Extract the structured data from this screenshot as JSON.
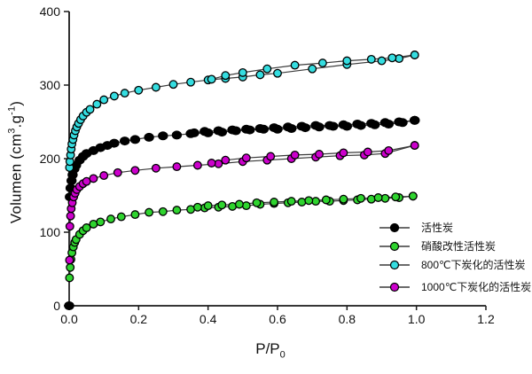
{
  "chart_data": {
    "type": "line",
    "subtype": "adsorption-desorption-isotherm-scatter",
    "title": "",
    "xlabel": {
      "base": "P/P",
      "sub": "0"
    },
    "ylabel": {
      "pre": "Volumen (cm",
      "sup1": "3",
      "mid": ".g",
      "sup2": "-1",
      "post": ")"
    },
    "xlim": [
      0,
      1.2
    ],
    "ylim": [
      0,
      400
    ],
    "x_ticks": [
      0.0,
      0.2,
      0.4,
      0.6,
      0.8,
      1.0,
      1.2
    ],
    "x_tick_labels": [
      "0.0",
      "0.2",
      "0.4",
      "0.6",
      "0.8",
      "1.0",
      "1.2"
    ],
    "y_ticks": [
      0,
      100,
      200,
      300,
      400
    ],
    "y_tick_labels": [
      "0",
      "100",
      "200",
      "300",
      "400"
    ],
    "grid": "off",
    "legend_position": "right-center",
    "line_color": "#3a3a3a",
    "series": [
      {
        "name": "活性炭",
        "color": "#000000",
        "adsorption": [
          [
            0,
            0
          ],
          [
            0.002,
            148
          ],
          [
            0.004,
            160
          ],
          [
            0.007,
            170
          ],
          [
            0.01,
            178
          ],
          [
            0.015,
            186
          ],
          [
            0.02,
            191
          ],
          [
            0.03,
            198
          ],
          [
            0.04,
            203
          ],
          [
            0.05,
            207
          ],
          [
            0.07,
            211
          ],
          [
            0.09,
            215
          ],
          [
            0.11,
            218
          ],
          [
            0.13,
            221
          ],
          [
            0.16,
            224
          ],
          [
            0.19,
            226
          ],
          [
            0.23,
            229
          ],
          [
            0.27,
            231
          ],
          [
            0.31,
            232
          ],
          [
            0.35,
            234
          ],
          [
            0.4,
            235
          ],
          [
            0.44,
            236
          ],
          [
            0.48,
            238
          ],
          [
            0.52,
            239
          ],
          [
            0.56,
            240
          ],
          [
            0.6,
            240
          ],
          [
            0.64,
            241
          ],
          [
            0.68,
            242
          ],
          [
            0.72,
            243
          ],
          [
            0.76,
            244
          ],
          [
            0.8,
            244
          ],
          [
            0.84,
            245
          ],
          [
            0.88,
            246
          ],
          [
            0.92,
            247
          ],
          [
            0.96,
            249
          ],
          [
            0.995,
            252
          ]
        ],
        "desorption": [
          [
            0.995,
            252
          ],
          [
            0.95,
            250
          ],
          [
            0.91,
            249
          ],
          [
            0.87,
            248
          ],
          [
            0.83,
            247
          ],
          [
            0.79,
            246
          ],
          [
            0.75,
            245
          ],
          [
            0.71,
            245
          ],
          [
            0.67,
            244
          ],
          [
            0.63,
            243
          ],
          [
            0.59,
            242
          ],
          [
            0.55,
            241
          ],
          [
            0.51,
            240
          ],
          [
            0.47,
            239
          ],
          [
            0.43,
            238
          ],
          [
            0.39,
            237
          ],
          [
            0.36,
            235
          ]
        ]
      },
      {
        "name": "硝酸改性活性炭",
        "color": "#2fd42f",
        "adsorption": [
          [
            0.001,
            38
          ],
          [
            0.003,
            52
          ],
          [
            0.005,
            63
          ],
          [
            0.008,
            72
          ],
          [
            0.012,
            80
          ],
          [
            0.016,
            86
          ],
          [
            0.02,
            90
          ],
          [
            0.03,
            97
          ],
          [
            0.04,
            102
          ],
          [
            0.05,
            106
          ],
          [
            0.07,
            111
          ],
          [
            0.09,
            114
          ],
          [
            0.12,
            118
          ],
          [
            0.15,
            121
          ],
          [
            0.19,
            124
          ],
          [
            0.23,
            127
          ],
          [
            0.27,
            128
          ],
          [
            0.31,
            130
          ],
          [
            0.35,
            131
          ],
          [
            0.39,
            133
          ],
          [
            0.43,
            134
          ],
          [
            0.47,
            135
          ],
          [
            0.51,
            136
          ],
          [
            0.55,
            138
          ],
          [
            0.59,
            139
          ],
          [
            0.63,
            140
          ],
          [
            0.67,
            141
          ],
          [
            0.71,
            142
          ],
          [
            0.75,
            142
          ],
          [
            0.79,
            143
          ],
          [
            0.83,
            144
          ],
          [
            0.87,
            145
          ],
          [
            0.91,
            146
          ],
          [
            0.95,
            147
          ],
          [
            0.99,
            149
          ]
        ],
        "desorption": [
          [
            0.99,
            149
          ],
          [
            0.94,
            148
          ],
          [
            0.89,
            147
          ],
          [
            0.84,
            146
          ],
          [
            0.79,
            145
          ],
          [
            0.74,
            144
          ],
          [
            0.69,
            143
          ],
          [
            0.64,
            142
          ],
          [
            0.59,
            141
          ],
          [
            0.54,
            140
          ],
          [
            0.49,
            138
          ],
          [
            0.44,
            137
          ],
          [
            0.4,
            136
          ],
          [
            0.37,
            134
          ]
        ]
      },
      {
        "name": "800℃下炭化的活性炭",
        "color": "#35dde0",
        "adsorption": [
          [
            0.001,
            188
          ],
          [
            0.002,
            196
          ],
          [
            0.004,
            205
          ],
          [
            0.006,
            213
          ],
          [
            0.008,
            220
          ],
          [
            0.011,
            226
          ],
          [
            0.014,
            232
          ],
          [
            0.018,
            238
          ],
          [
            0.022,
            243
          ],
          [
            0.027,
            248
          ],
          [
            0.033,
            253
          ],
          [
            0.04,
            258
          ],
          [
            0.05,
            263
          ],
          [
            0.06,
            267
          ],
          [
            0.08,
            274
          ],
          [
            0.1,
            280
          ],
          [
            0.13,
            285
          ],
          [
            0.16,
            289
          ],
          [
            0.2,
            293
          ],
          [
            0.25,
            297
          ],
          [
            0.3,
            301
          ],
          [
            0.35,
            304
          ],
          [
            0.4,
            307
          ],
          [
            0.45,
            309
          ],
          [
            0.5,
            311
          ],
          [
            0.55,
            314
          ],
          [
            0.6,
            316
          ],
          [
            0.7,
            322
          ],
          [
            0.8,
            328
          ],
          [
            0.9,
            333
          ],
          [
            0.95,
            336
          ],
          [
            0.995,
            341
          ]
        ],
        "desorption": [
          [
            0.995,
            341
          ],
          [
            0.93,
            337
          ],
          [
            0.87,
            335
          ],
          [
            0.8,
            333
          ],
          [
            0.73,
            330
          ],
          [
            0.65,
            327
          ],
          [
            0.57,
            322
          ],
          [
            0.5,
            317
          ],
          [
            0.45,
            313
          ],
          [
            0.41,
            308
          ]
        ]
      },
      {
        "name": "1000℃下炭化的活性炭",
        "color": "#cc00cc",
        "adsorption": [
          [
            0.001,
            62
          ],
          [
            0.002,
            108
          ],
          [
            0.004,
            122
          ],
          [
            0.006,
            132
          ],
          [
            0.009,
            140
          ],
          [
            0.013,
            148
          ],
          [
            0.017,
            153
          ],
          [
            0.022,
            158
          ],
          [
            0.03,
            162
          ],
          [
            0.04,
            166
          ],
          [
            0.05,
            169
          ],
          [
            0.07,
            173
          ],
          [
            0.1,
            177
          ],
          [
            0.14,
            181
          ],
          [
            0.19,
            184
          ],
          [
            0.25,
            187
          ],
          [
            0.31,
            189
          ],
          [
            0.37,
            191
          ],
          [
            0.43,
            193
          ],
          [
            0.5,
            196
          ],
          [
            0.57,
            198
          ],
          [
            0.64,
            200
          ],
          [
            0.71,
            202
          ],
          [
            0.78,
            204
          ],
          [
            0.85,
            205
          ],
          [
            0.91,
            207
          ],
          [
            0.995,
            218
          ]
        ],
        "desorption": [
          [
            0.995,
            218
          ],
          [
            0.92,
            211
          ],
          [
            0.86,
            209
          ],
          [
            0.79,
            208
          ],
          [
            0.72,
            206
          ],
          [
            0.65,
            205
          ],
          [
            0.58,
            203
          ],
          [
            0.51,
            201
          ],
          [
            0.45,
            198
          ],
          [
            0.41,
            194
          ]
        ]
      }
    ]
  }
}
